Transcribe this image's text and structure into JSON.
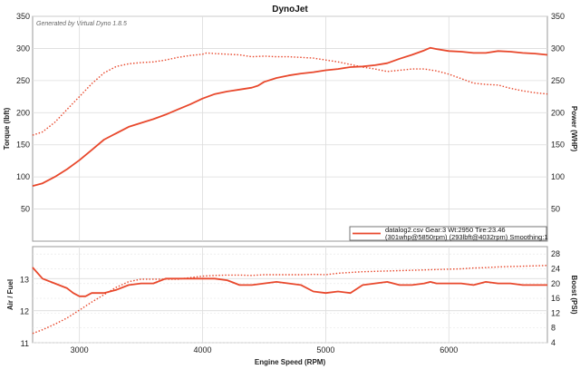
{
  "chart_data": [
    {
      "type": "line",
      "title": "DynoJet",
      "watermark": "Generated by Virtual Dyno 1.8.5",
      "xlabel": "Engine Speed (RPM)",
      "ylabel_left": "Torque (lbft)",
      "ylabel_right": "Power (WHP)",
      "xlim": [
        2620,
        6800
      ],
      "ylim": [
        0,
        350
      ],
      "x_ticks": [
        "3000",
        "4000",
        "5000",
        "6000"
      ],
      "y_ticks_left": [
        "50",
        "100",
        "150",
        "200",
        "250",
        "300",
        "350"
      ],
      "y_ticks_right": [
        "50",
        "100",
        "150",
        "200",
        "250",
        "300",
        "350"
      ],
      "grid": true,
      "legend_position": "bottom-right",
      "legend_lines": [
        "datalog2.csv Gear:3 Wt:2950 Tire:23.46",
        "(301whp@5850rpm) (293lbft@4032rpm) Smoothing:1"
      ],
      "color": "#e8482c",
      "series": [
        {
          "style": "solid",
          "x": [
            2620,
            2700,
            2800,
            2900,
            3000,
            3100,
            3200,
            3400,
            3600,
            3700,
            3800,
            3900,
            4000,
            4100,
            4200,
            4300,
            4400,
            4450,
            4500,
            4600,
            4700,
            4800,
            4900,
            5000,
            5100,
            5200,
            5300,
            5400,
            5500,
            5600,
            5700,
            5800,
            5850,
            5900,
            6000,
            6100,
            6200,
            6300,
            6400,
            6500,
            6600,
            6700,
            6800
          ],
          "y": [
            86,
            90,
            100,
            112,
            126,
            142,
            158,
            178,
            190,
            197,
            205,
            213,
            222,
            229,
            233,
            236,
            239,
            242,
            248,
            254,
            258,
            261,
            263,
            266,
            268,
            271,
            272,
            274,
            277,
            284,
            290,
            297,
            301,
            299,
            296,
            295,
            293,
            293,
            296,
            295,
            293,
            292,
            290
          ]
        },
        {
          "style": "dotted",
          "x": [
            2620,
            2700,
            2800,
            2900,
            3000,
            3100,
            3200,
            3300,
            3400,
            3500,
            3600,
            3700,
            3800,
            3900,
            4000,
            4032,
            4100,
            4200,
            4300,
            4400,
            4500,
            4600,
            4700,
            4800,
            4900,
            5000,
            5100,
            5200,
            5300,
            5400,
            5500,
            5600,
            5700,
            5800,
            5900,
            6000,
            6100,
            6200,
            6300,
            6400,
            6500,
            6600,
            6700,
            6800
          ],
          "y": [
            165,
            170,
            185,
            205,
            225,
            245,
            262,
            272,
            276,
            278,
            279,
            282,
            286,
            289,
            291,
            293,
            292,
            291,
            290,
            287,
            288,
            287,
            287,
            286,
            285,
            282,
            279,
            275,
            271,
            268,
            264,
            266,
            268,
            268,
            265,
            260,
            253,
            246,
            244,
            243,
            238,
            234,
            231,
            229
          ]
        }
      ]
    },
    {
      "type": "line",
      "xlim": [
        2620,
        6800
      ],
      "ylabel_left": "Air / Fuel",
      "ylabel_right": "Boost (PSI)",
      "ylim_left": [
        11,
        14
      ],
      "ylim_right": [
        4,
        30
      ],
      "y_ticks_left": [
        "11",
        "12",
        "13"
      ],
      "y_ticks_right": [
        "4",
        "8",
        "12",
        "16",
        "20",
        "24",
        "28"
      ],
      "grid": true,
      "color": "#e8482c",
      "series": [
        {
          "style": "solid",
          "axis": "left",
          "x": [
            2620,
            2700,
            2800,
            2900,
            2950,
            3000,
            3050,
            3100,
            3200,
            3300,
            3400,
            3500,
            3600,
            3700,
            3800,
            3900,
            4000,
            4100,
            4200,
            4300,
            4400,
            4500,
            4600,
            4700,
            4800,
            4900,
            5000,
            5100,
            5200,
            5300,
            5400,
            5500,
            5600,
            5700,
            5800,
            5850,
            5900,
            6000,
            6100,
            6200,
            6300,
            6400,
            6500,
            6600,
            6700,
            6800
          ],
          "y": [
            13.35,
            13.0,
            12.85,
            12.7,
            12.55,
            12.45,
            12.45,
            12.55,
            12.55,
            12.65,
            12.8,
            12.85,
            12.85,
            13.0,
            13.0,
            13.0,
            13.0,
            13.0,
            12.95,
            12.8,
            12.8,
            12.85,
            12.9,
            12.85,
            12.8,
            12.6,
            12.55,
            12.6,
            12.55,
            12.8,
            12.85,
            12.9,
            12.8,
            12.8,
            12.85,
            12.9,
            12.85,
            12.85,
            12.85,
            12.8,
            12.9,
            12.85,
            12.85,
            12.8,
            12.8,
            12.8
          ]
        },
        {
          "style": "dotted",
          "axis": "right",
          "x": [
            2620,
            2700,
            2800,
            2900,
            3000,
            3100,
            3200,
            3300,
            3400,
            3500,
            3600,
            3700,
            3800,
            3900,
            4000,
            4100,
            4200,
            4300,
            4400,
            4500,
            4600,
            4700,
            4800,
            4900,
            5000,
            5100,
            5200,
            5300,
            5400,
            5500,
            5600,
            5700,
            5800,
            5900,
            6000,
            6100,
            6200,
            6300,
            6400,
            6500,
            6600,
            6700,
            6800
          ],
          "y": [
            6.5,
            7.5,
            9.0,
            10.7,
            12.8,
            15.0,
            17.0,
            19.0,
            20.5,
            21.2,
            21.2,
            21.2,
            21.2,
            21.6,
            22.0,
            22.2,
            22.3,
            22.3,
            22.2,
            22.4,
            22.4,
            22.4,
            22.4,
            22.5,
            22.4,
            22.8,
            23.0,
            23.2,
            23.3,
            23.4,
            23.5,
            23.6,
            23.7,
            23.8,
            23.9,
            24.0,
            24.2,
            24.3,
            24.5,
            24.6,
            24.7,
            24.8,
            24.9
          ]
        }
      ]
    }
  ]
}
